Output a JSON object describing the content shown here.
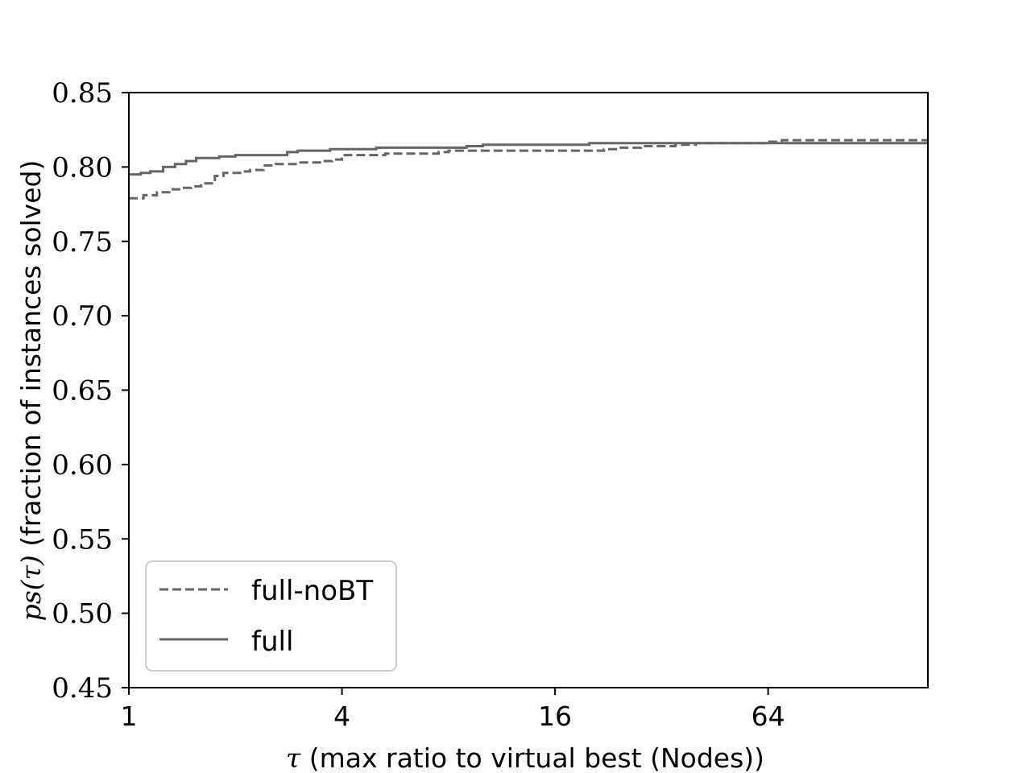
{
  "chart_data": {
    "type": "line",
    "title": "",
    "xlabel": "τ (max ratio to virtual best (Nodes))",
    "xlabel_symbol": "τ",
    "xlabel_text": " (max ratio to virtual best (Nodes))",
    "ylabel": "ps(τ) (fraction of instances solved)",
    "ylabel_symbol": "ps(τ)",
    "ylabel_text": " (fraction of instances solved)",
    "x_scale": "log2",
    "xlim": [
      1,
      181
    ],
    "ylim": [
      0.45,
      0.85
    ],
    "x_ticks": [
      1,
      4,
      16,
      64
    ],
    "x_tick_labels": [
      "1",
      "4",
      "16",
      "64"
    ],
    "y_ticks": [
      0.45,
      0.5,
      0.55,
      0.6,
      0.65,
      0.7,
      0.75,
      0.8,
      0.85
    ],
    "y_tick_labels": [
      "0.45",
      "0.50",
      "0.55",
      "0.60",
      "0.65",
      "0.70",
      "0.75",
      "0.80",
      "0.85"
    ],
    "grid": false,
    "legend_position": "lower-left",
    "series": [
      {
        "name": "full-noBT",
        "style": "dashed",
        "color": "#666666",
        "x": [
          1,
          1.1,
          1.2,
          1.3,
          1.4,
          1.5,
          1.6,
          1.75,
          1.85,
          2.0,
          2.1,
          2.2,
          2.4,
          2.6,
          2.8,
          3.0,
          3.3,
          3.55,
          3.75,
          4.0,
          5.0,
          5.3,
          6.0,
          7.0,
          7.5,
          8.0,
          10.0,
          12.0,
          14.0,
          20.0,
          22.0,
          24.0,
          26.0,
          28.0,
          32.0,
          35.0,
          40.0,
          50.0,
          55.0,
          64.0,
          70.0,
          181.0
        ],
        "y": [
          0.779,
          0.781,
          0.783,
          0.785,
          0.786,
          0.787,
          0.789,
          0.794,
          0.796,
          0.796,
          0.797,
          0.798,
          0.801,
          0.802,
          0.802,
          0.803,
          0.803,
          0.804,
          0.805,
          0.808,
          0.808,
          0.809,
          0.809,
          0.809,
          0.81,
          0.811,
          0.811,
          0.811,
          0.811,
          0.811,
          0.812,
          0.813,
          0.813,
          0.814,
          0.814,
          0.815,
          0.816,
          0.816,
          0.816,
          0.817,
          0.818,
          0.818
        ]
      },
      {
        "name": "full",
        "style": "solid",
        "color": "#666666",
        "x": [
          1,
          1.08,
          1.15,
          1.25,
          1.35,
          1.45,
          1.55,
          1.7,
          1.8,
          2.0,
          2.2,
          2.5,
          2.8,
          3.0,
          3.4,
          3.7,
          4.0,
          5.0,
          6.0,
          7.0,
          8.0,
          9.0,
          10.0,
          14.0,
          20.0,
          30.0,
          50.0,
          181.0
        ],
        "y": [
          0.795,
          0.796,
          0.797,
          0.8,
          0.802,
          0.804,
          0.806,
          0.806,
          0.807,
          0.808,
          0.808,
          0.808,
          0.81,
          0.811,
          0.811,
          0.812,
          0.812,
          0.813,
          0.813,
          0.813,
          0.813,
          0.814,
          0.815,
          0.815,
          0.816,
          0.816,
          0.816,
          0.816
        ]
      }
    ]
  }
}
